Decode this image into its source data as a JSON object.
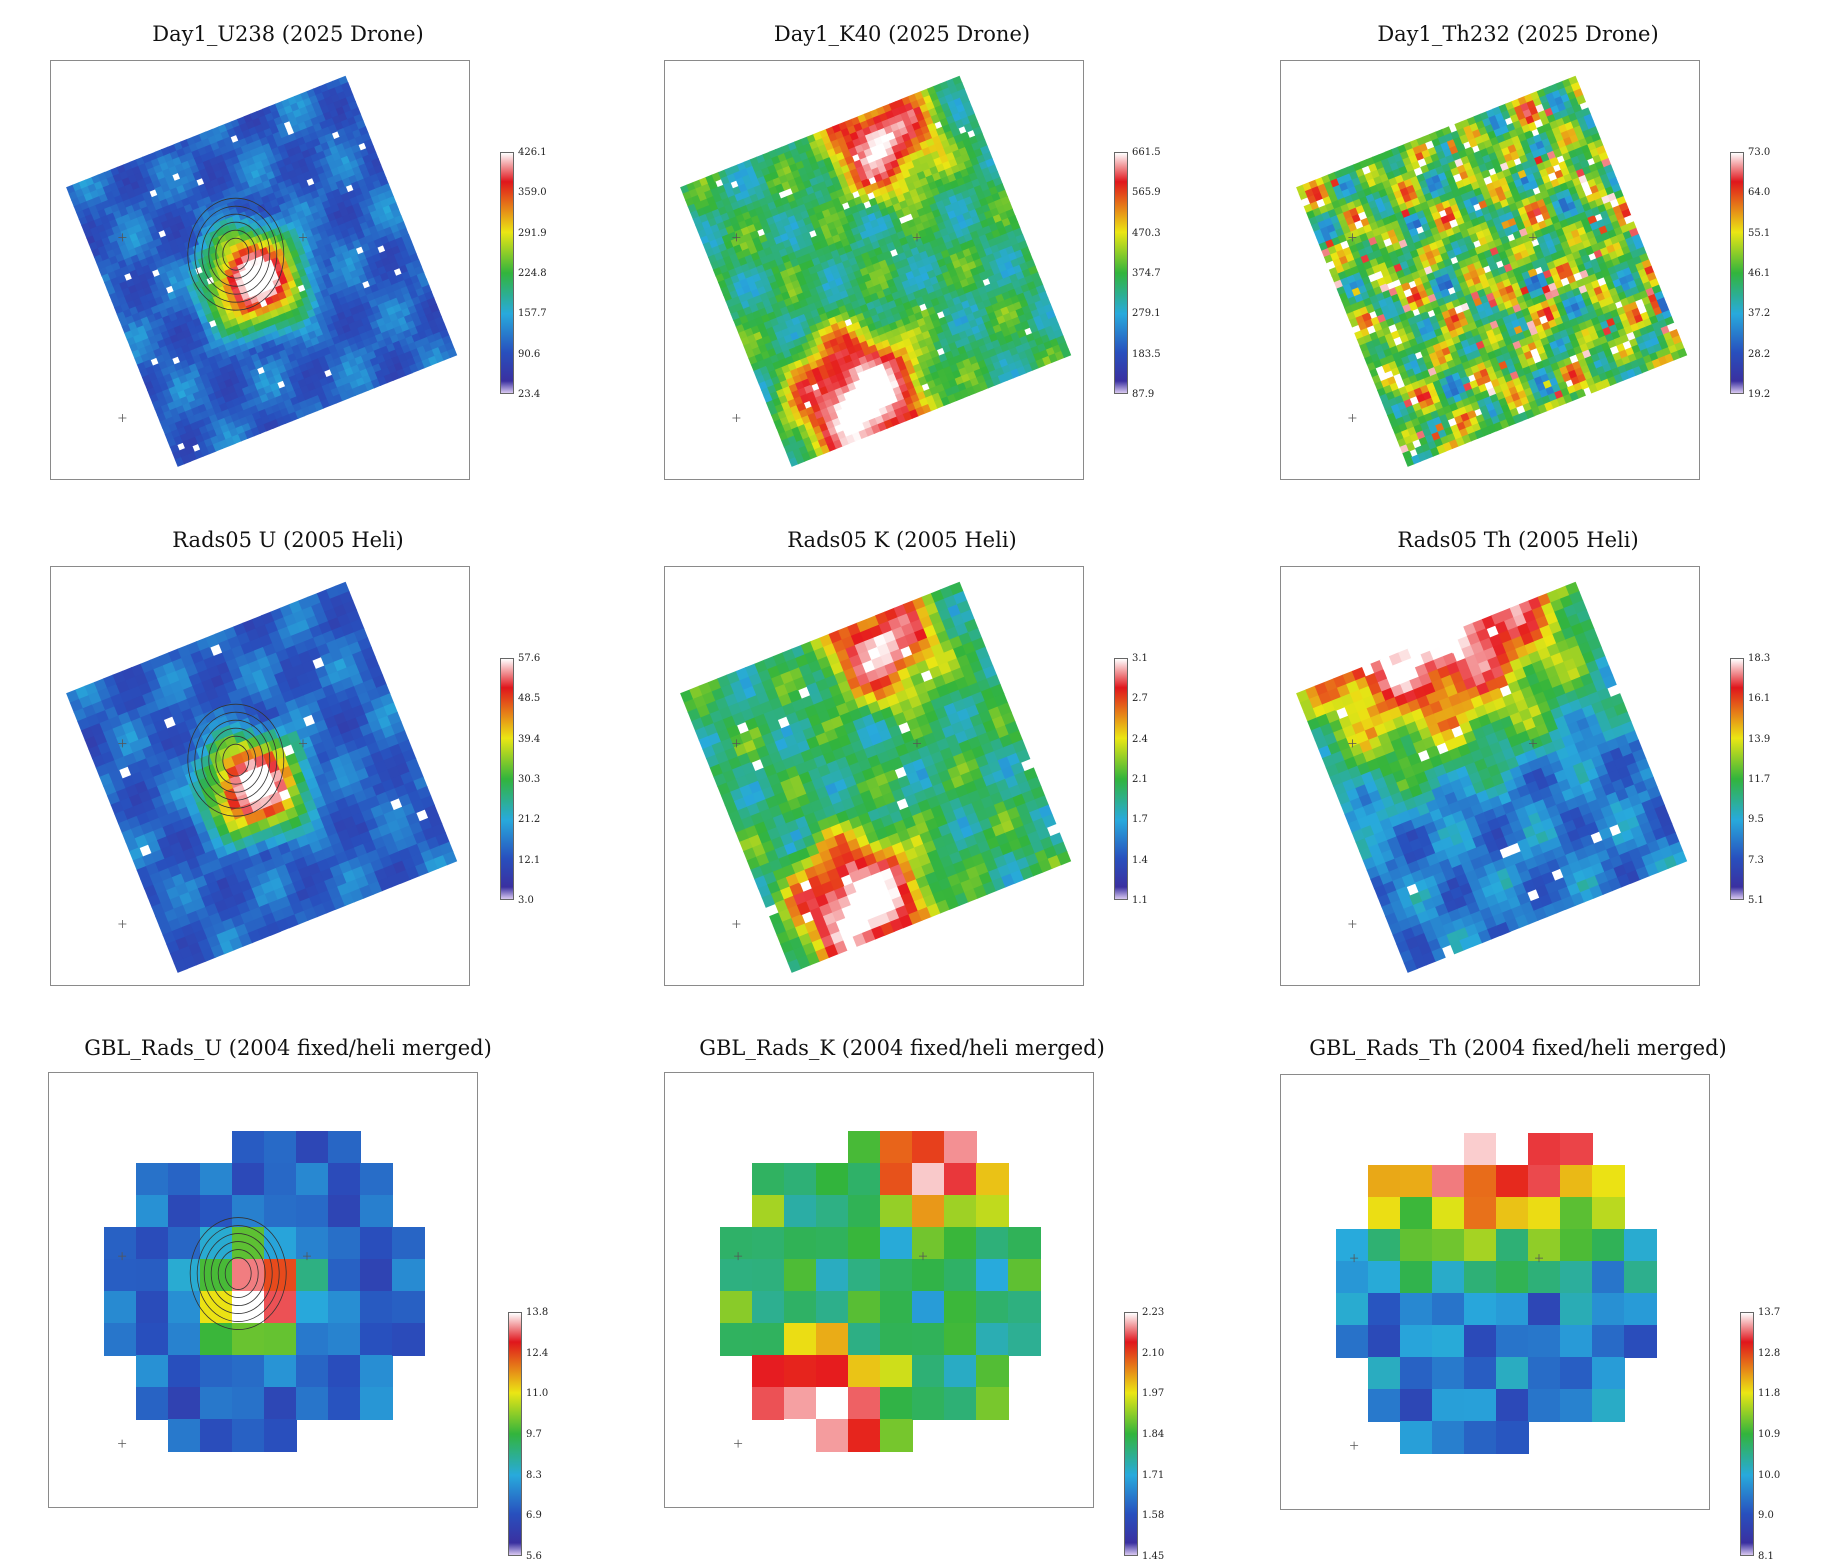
{
  "colors": {
    "low": "#2a2f9e",
    "mid": "#2fae3a",
    "high": "#e0161c",
    "max": "#ffffff"
  },
  "chart_data": [
    {
      "type": "heatmap",
      "title": "Day1_U238 (2025 Drone)",
      "colorbar_ticks": [
        "426.1",
        "359.0",
        "291.9",
        "224.8",
        "157.7",
        "90.6",
        "23.4"
      ],
      "clim": [
        23.4,
        426.1
      ],
      "grid": "fine",
      "pattern": "hotspot"
    },
    {
      "type": "heatmap",
      "title": "Day1_K40 (2025 Drone)",
      "colorbar_ticks": [
        "661.5",
        "565.9",
        "470.3",
        "374.7",
        "279.1",
        "183.5",
        "87.9"
      ],
      "clim": [
        87.9,
        661.5
      ],
      "grid": "fine",
      "pattern": "edges"
    },
    {
      "type": "heatmap",
      "title": "Day1_Th232 (2025 Drone)",
      "colorbar_ticks": [
        "73.0",
        "64.0",
        "55.1",
        "46.1",
        "37.2",
        "28.2",
        "19.2"
      ],
      "clim": [
        19.2,
        73.0
      ],
      "grid": "fine",
      "pattern": "speckle"
    },
    {
      "type": "heatmap",
      "title": "Rads05 U (2005 Heli)",
      "colorbar_ticks": [
        "57.6",
        "48.5",
        "39.4",
        "30.3",
        "21.2",
        "12.1",
        "3.0"
      ],
      "clim": [
        3.0,
        57.6
      ],
      "grid": "medium",
      "pattern": "hotspot"
    },
    {
      "type": "heatmap",
      "title": "Rads05 K (2005 Heli)",
      "colorbar_ticks": [
        "3.1",
        "2.7",
        "2.4",
        "2.1",
        "1.7",
        "1.4",
        "1.1"
      ],
      "clim": [
        1.1,
        3.1
      ],
      "grid": "medium",
      "pattern": "edges"
    },
    {
      "type": "heatmap",
      "title": "Rads05 Th (2005 Heli)",
      "colorbar_ticks": [
        "18.3",
        "16.1",
        "13.9",
        "11.7",
        "9.5",
        "7.3",
        "5.1"
      ],
      "clim": [
        5.1,
        18.3
      ],
      "grid": "medium",
      "pattern": "top"
    },
    {
      "type": "heatmap",
      "title": "GBL_Rads_U (2004 fixed/heli merged)",
      "colorbar_ticks": [
        "13.8",
        "12.4",
        "11.0",
        "9.7",
        "8.3",
        "6.9",
        "5.6"
      ],
      "clim": [
        5.6,
        13.8
      ],
      "grid": "coarse",
      "pattern": "hotspot"
    },
    {
      "type": "heatmap",
      "title": "GBL_Rads_K (2004 fixed/heli merged)",
      "colorbar_ticks": [
        "2.23",
        "2.10",
        "1.97",
        "1.84",
        "1.71",
        "1.58",
        "1.45"
      ],
      "clim": [
        1.45,
        2.23
      ],
      "grid": "coarse",
      "pattern": "edges"
    },
    {
      "type": "heatmap",
      "title": "GBL_Rads_Th (2004 fixed/heli merged)",
      "colorbar_ticks": [
        "13.7",
        "12.8",
        "11.8",
        "10.9",
        "10.0",
        "9.0",
        "8.1"
      ],
      "clim": [
        8.1,
        13.7
      ],
      "grid": "coarse",
      "pattern": "top"
    }
  ]
}
